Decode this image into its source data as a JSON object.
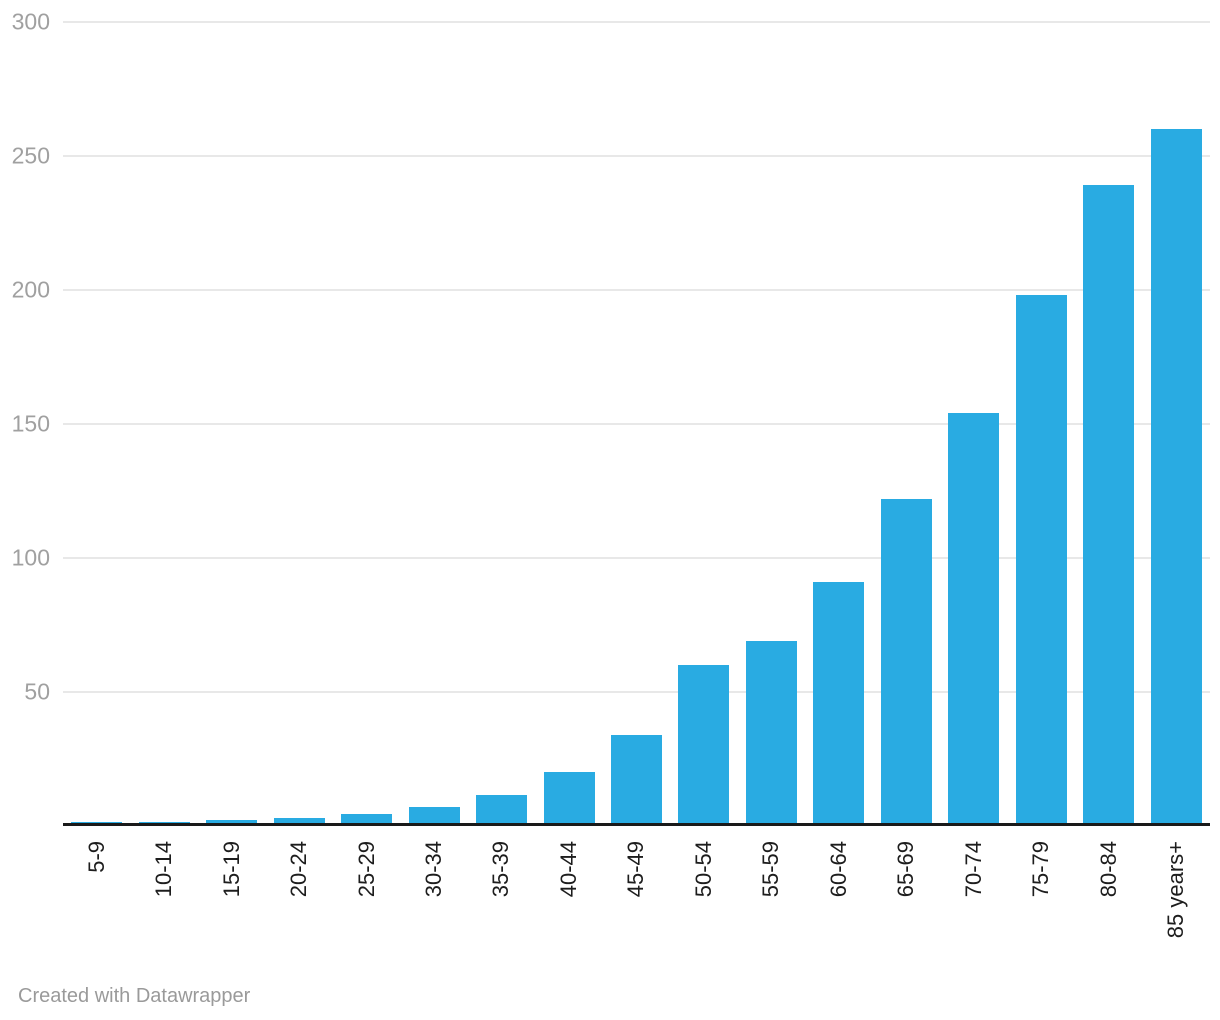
{
  "chart_data": {
    "type": "bar",
    "categories": [
      "5-9",
      "10-14",
      "15-19",
      "20-24",
      "25-29",
      "30-34",
      "35-39",
      "40-44",
      "45-49",
      "50-54",
      "55-59",
      "60-64",
      "65-69",
      "70-74",
      "75-79",
      "80-84",
      "85 years+"
    ],
    "values": [
      0.2,
      0.3,
      1,
      2,
      3.5,
      6,
      10.5,
      19,
      33,
      59,
      68,
      90,
      121,
      153,
      197,
      238,
      259
    ],
    "title": "",
    "xlabel": "",
    "ylabel": "",
    "ylim": [
      0,
      300
    ],
    "yticks": [
      300,
      250,
      200,
      150,
      100,
      50
    ],
    "grid": true,
    "legend": false,
    "bar_color": "#29ABE2",
    "grid_color": "#e8e8e8",
    "axis_line_color": "#1a1a1a",
    "y_label_color": "#a0a0a0",
    "x_label_color": "#1d1d1d"
  },
  "footer": {
    "credit": "Created with Datawrapper"
  }
}
